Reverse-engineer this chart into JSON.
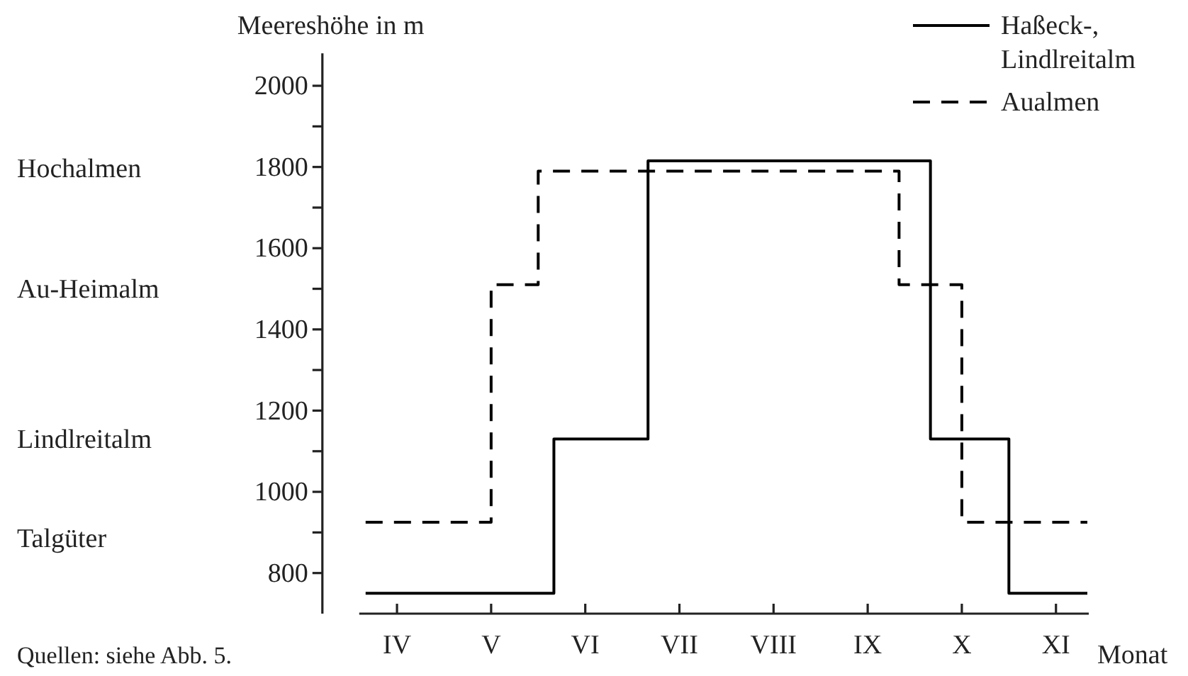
{
  "chart_data": {
    "type": "step",
    "ylabel": "Meereshöhe in m",
    "xlabel": "Monat",
    "categories": [
      null,
      null,
      "IV",
      null,
      null,
      null,
      null,
      null,
      "V",
      null,
      null,
      null,
      null,
      null,
      "VI",
      null,
      null,
      null,
      null,
      null,
      "VII",
      null,
      null,
      null,
      null,
      null,
      "VIII",
      null,
      null,
      null,
      null,
      null,
      "IX",
      null,
      null,
      null,
      null,
      null,
      "X",
      null,
      null,
      null,
      null,
      null,
      "XI",
      null,
      null
    ],
    "ylim": [
      700,
      2080
    ],
    "yticks": [
      800,
      1000,
      1200,
      1400,
      1600,
      1800,
      2000
    ],
    "series": [
      {
        "name": "Haßeck-, Lindlreitalm",
        "color": "#000000",
        "line_style": "solid",
        "values": [
          750,
          750,
          750,
          750,
          750,
          750,
          750,
          750,
          750,
          750,
          750,
          750,
          1130,
          1130,
          1130,
          1130,
          1130,
          1130,
          1815,
          1815,
          1815,
          1815,
          1815,
          1815,
          1815,
          1815,
          1815,
          1815,
          1815,
          1815,
          1815,
          1815,
          1815,
          1815,
          1815,
          1815,
          1130,
          1130,
          1130,
          1130,
          1130,
          750,
          750,
          750,
          750,
          750,
          750
        ]
      },
      {
        "name": "Aualmen",
        "color": "#000000",
        "line_style": "dashed",
        "values": [
          925,
          925,
          925,
          925,
          925,
          925,
          925,
          925,
          1510,
          1510,
          1510,
          1790,
          1790,
          1790,
          1790,
          1790,
          1790,
          1790,
          1790,
          1790,
          1790,
          1790,
          1790,
          1790,
          1790,
          1790,
          1790,
          1790,
          1790,
          1790,
          1790,
          1790,
          1790,
          1790,
          1510,
          1510,
          1510,
          1510,
          925,
          925,
          925,
          925,
          925,
          925,
          925,
          925,
          925
        ]
      }
    ],
    "legend": "top right",
    "grid": false,
    "annotations": [
      "Hochalmen",
      "Au-Heimalm",
      "Lindlreitalm",
      "Talgüter",
      "Quellen: siehe Abb. 5."
    ]
  }
}
